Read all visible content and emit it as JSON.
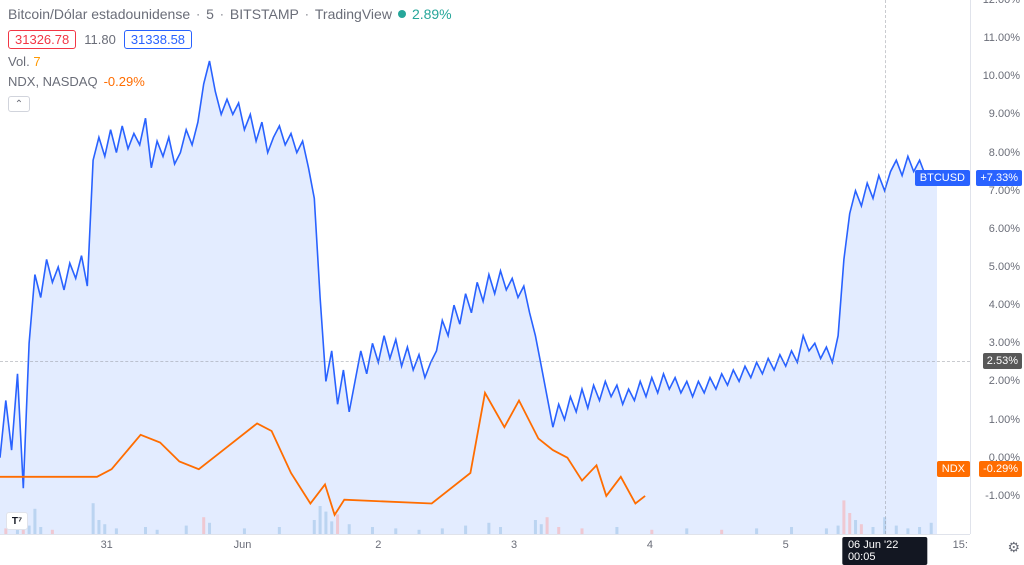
{
  "header": {
    "symbol": "Bitcoin/Dólar estadounidense",
    "interval": "5",
    "exchange": "BITSTAMP",
    "provider": "TradingView",
    "change_pct": "2.89%"
  },
  "ohlc": {
    "open": "31326.78",
    "mid": "11.80",
    "close": "31338.58"
  },
  "volume": {
    "label": "Vol.",
    "value": "7"
  },
  "compare": {
    "symbol": "NDX, NASDAQ",
    "change": "-0.29%"
  },
  "collapse_glyph": "⌃",
  "gear_glyph": "⚙",
  "logo": "T⁷",
  "y_axis": {
    "min": -2.0,
    "max": 12.0,
    "ticks": [
      {
        "v": 12.0,
        "label": "12.00%"
      },
      {
        "v": 11.0,
        "label": "11.00%"
      },
      {
        "v": 10.0,
        "label": "10.00%"
      },
      {
        "v": 9.0,
        "label": "9.00%"
      },
      {
        "v": 8.0,
        "label": "8.00%"
      },
      {
        "v": 7.0,
        "label": "7.00%"
      },
      {
        "v": 6.0,
        "label": "6.00%"
      },
      {
        "v": 5.0,
        "label": "5.00%"
      },
      {
        "v": 4.0,
        "label": "4.00%"
      },
      {
        "v": 3.0,
        "label": "3.00%"
      },
      {
        "v": 2.0,
        "label": "2.00%"
      },
      {
        "v": 1.0,
        "label": "1.00%"
      },
      {
        "v": 0.0,
        "label": "0.00%"
      },
      {
        "v": -1.0,
        "label": "-1.00%"
      }
    ],
    "crosshair": {
      "v": 2.53,
      "label": "2.53%",
      "bg": "#585858"
    },
    "current_btc": {
      "v": 7.33,
      "label": "+7.33%",
      "bg": "#2962ff",
      "tag": "BTCUSD"
    },
    "current_ndx": {
      "v": -0.29,
      "label": "-0.29%",
      "bg": "#ff6d00",
      "tag": "NDX"
    }
  },
  "x_axis": {
    "ticks": [
      {
        "px": 0.11,
        "label": "31"
      },
      {
        "px": 0.25,
        "label": "Jun"
      },
      {
        "px": 0.39,
        "label": "2"
      },
      {
        "px": 0.53,
        "label": "3"
      },
      {
        "px": 0.67,
        "label": "4"
      },
      {
        "px": 0.81,
        "label": "5"
      },
      {
        "px": 0.99,
        "label": "15:"
      }
    ],
    "crosshair": {
      "px": 0.912,
      "label": "06 Jun '22  00:05"
    }
  },
  "colors": {
    "btc_line": "#2962ff",
    "btc_fill": "#e3ecff",
    "ndx_line": "#ff6d00",
    "vol_bar": "#a0c4e8",
    "vol_bar_red": "#f6b0b4",
    "grid": "#e0e3eb",
    "bg": "#ffffff"
  },
  "btc_series": [
    [
      0.0,
      0.0
    ],
    [
      0.006,
      1.5
    ],
    [
      0.012,
      0.2
    ],
    [
      0.018,
      2.2
    ],
    [
      0.024,
      -0.8
    ],
    [
      0.03,
      3.0
    ],
    [
      0.036,
      4.8
    ],
    [
      0.042,
      4.2
    ],
    [
      0.048,
      5.2
    ],
    [
      0.054,
      4.6
    ],
    [
      0.06,
      5.0
    ],
    [
      0.066,
      4.4
    ],
    [
      0.072,
      5.1
    ],
    [
      0.078,
      4.7
    ],
    [
      0.084,
      5.3
    ],
    [
      0.09,
      4.5
    ],
    [
      0.096,
      7.8
    ],
    [
      0.102,
      8.4
    ],
    [
      0.108,
      7.9
    ],
    [
      0.114,
      8.6
    ],
    [
      0.12,
      8.0
    ],
    [
      0.126,
      8.7
    ],
    [
      0.132,
      8.1
    ],
    [
      0.138,
      8.5
    ],
    [
      0.144,
      8.2
    ],
    [
      0.15,
      8.9
    ],
    [
      0.156,
      7.6
    ],
    [
      0.162,
      8.3
    ],
    [
      0.168,
      7.9
    ],
    [
      0.174,
      8.4
    ],
    [
      0.18,
      7.7
    ],
    [
      0.186,
      8.0
    ],
    [
      0.192,
      8.6
    ],
    [
      0.198,
      8.2
    ],
    [
      0.204,
      8.8
    ],
    [
      0.21,
      9.8
    ],
    [
      0.216,
      10.4
    ],
    [
      0.222,
      9.6
    ],
    [
      0.228,
      9.0
    ],
    [
      0.234,
      9.4
    ],
    [
      0.24,
      9.0
    ],
    [
      0.246,
      9.3
    ],
    [
      0.252,
      8.6
    ],
    [
      0.258,
      9.0
    ],
    [
      0.264,
      8.3
    ],
    [
      0.27,
      8.8
    ],
    [
      0.276,
      8.0
    ],
    [
      0.282,
      8.4
    ],
    [
      0.288,
      8.7
    ],
    [
      0.294,
      8.2
    ],
    [
      0.3,
      8.5
    ],
    [
      0.306,
      8.0
    ],
    [
      0.312,
      8.3
    ],
    [
      0.318,
      7.6
    ],
    [
      0.324,
      6.8
    ],
    [
      0.33,
      4.2
    ],
    [
      0.336,
      2.0
    ],
    [
      0.342,
      2.8
    ],
    [
      0.348,
      1.4
    ],
    [
      0.354,
      2.3
    ],
    [
      0.36,
      1.2
    ],
    [
      0.366,
      2.0
    ],
    [
      0.372,
      2.8
    ],
    [
      0.378,
      2.2
    ],
    [
      0.384,
      3.0
    ],
    [
      0.39,
      2.5
    ],
    [
      0.396,
      3.2
    ],
    [
      0.402,
      2.6
    ],
    [
      0.408,
      3.1
    ],
    [
      0.414,
      2.4
    ],
    [
      0.42,
      2.9
    ],
    [
      0.426,
      2.3
    ],
    [
      0.432,
      2.7
    ],
    [
      0.438,
      2.1
    ],
    [
      0.444,
      2.5
    ],
    [
      0.45,
      2.8
    ],
    [
      0.456,
      3.6
    ],
    [
      0.462,
      3.2
    ],
    [
      0.468,
      4.0
    ],
    [
      0.474,
      3.5
    ],
    [
      0.48,
      4.3
    ],
    [
      0.486,
      3.8
    ],
    [
      0.492,
      4.6
    ],
    [
      0.498,
      4.1
    ],
    [
      0.504,
      4.8
    ],
    [
      0.51,
      4.3
    ],
    [
      0.516,
      4.9
    ],
    [
      0.522,
      4.4
    ],
    [
      0.528,
      4.7
    ],
    [
      0.534,
      4.2
    ],
    [
      0.54,
      4.5
    ],
    [
      0.546,
      3.8
    ],
    [
      0.552,
      3.2
    ],
    [
      0.558,
      2.4
    ],
    [
      0.564,
      1.6
    ],
    [
      0.57,
      0.8
    ],
    [
      0.576,
      1.4
    ],
    [
      0.582,
      1.0
    ],
    [
      0.588,
      1.6
    ],
    [
      0.594,
      1.2
    ],
    [
      0.6,
      1.8
    ],
    [
      0.606,
      1.3
    ],
    [
      0.612,
      1.9
    ],
    [
      0.618,
      1.5
    ],
    [
      0.624,
      2.0
    ],
    [
      0.63,
      1.6
    ],
    [
      0.636,
      1.9
    ],
    [
      0.642,
      1.4
    ],
    [
      0.648,
      1.8
    ],
    [
      0.654,
      1.5
    ],
    [
      0.66,
      2.0
    ],
    [
      0.666,
      1.6
    ],
    [
      0.672,
      2.1
    ],
    [
      0.678,
      1.7
    ],
    [
      0.684,
      2.2
    ],
    [
      0.69,
      1.8
    ],
    [
      0.696,
      2.1
    ],
    [
      0.702,
      1.7
    ],
    [
      0.708,
      2.0
    ],
    [
      0.714,
      1.6
    ],
    [
      0.72,
      2.0
    ],
    [
      0.726,
      1.7
    ],
    [
      0.732,
      2.1
    ],
    [
      0.738,
      1.8
    ],
    [
      0.744,
      2.2
    ],
    [
      0.75,
      1.9
    ],
    [
      0.756,
      2.3
    ],
    [
      0.762,
      2.0
    ],
    [
      0.768,
      2.4
    ],
    [
      0.774,
      2.1
    ],
    [
      0.78,
      2.5
    ],
    [
      0.786,
      2.2
    ],
    [
      0.792,
      2.6
    ],
    [
      0.798,
      2.3
    ],
    [
      0.804,
      2.7
    ],
    [
      0.81,
      2.4
    ],
    [
      0.816,
      2.8
    ],
    [
      0.822,
      2.5
    ],
    [
      0.828,
      3.2
    ],
    [
      0.834,
      2.8
    ],
    [
      0.84,
      3.0
    ],
    [
      0.846,
      2.6
    ],
    [
      0.852,
      2.9
    ],
    [
      0.858,
      2.5
    ],
    [
      0.864,
      3.2
    ],
    [
      0.87,
      5.2
    ],
    [
      0.876,
      6.4
    ],
    [
      0.882,
      7.0
    ],
    [
      0.888,
      6.6
    ],
    [
      0.894,
      7.2
    ],
    [
      0.9,
      6.8
    ],
    [
      0.906,
      7.4
    ],
    [
      0.912,
      7.0
    ],
    [
      0.918,
      7.5
    ],
    [
      0.924,
      7.8
    ],
    [
      0.93,
      7.4
    ],
    [
      0.936,
      7.9
    ],
    [
      0.942,
      7.5
    ],
    [
      0.948,
      7.8
    ],
    [
      0.954,
      7.4
    ],
    [
      0.96,
      7.2
    ],
    [
      0.966,
      7.33
    ]
  ],
  "ndx_series": [
    [
      0.0,
      -0.5
    ],
    [
      0.1,
      -0.5
    ],
    [
      0.115,
      -0.3
    ],
    [
      0.145,
      0.6
    ],
    [
      0.165,
      0.4
    ],
    [
      0.185,
      -0.1
    ],
    [
      0.205,
      -0.3
    ],
    [
      0.225,
      0.1
    ],
    [
      0.265,
      0.9
    ],
    [
      0.28,
      0.7
    ],
    [
      0.3,
      -0.4
    ],
    [
      0.32,
      -1.2
    ],
    [
      0.335,
      -0.7
    ],
    [
      0.345,
      -1.5
    ],
    [
      0.355,
      -1.1
    ],
    [
      0.445,
      -1.2
    ],
    [
      0.485,
      -0.4
    ],
    [
      0.5,
      1.7
    ],
    [
      0.52,
      0.8
    ],
    [
      0.535,
      1.5
    ],
    [
      0.555,
      0.5
    ],
    [
      0.57,
      0.2
    ],
    [
      0.585,
      0.0
    ],
    [
      0.6,
      -0.6
    ],
    [
      0.615,
      -0.2
    ],
    [
      0.625,
      -1.0
    ],
    [
      0.64,
      -0.5
    ],
    [
      0.655,
      -1.2
    ],
    [
      0.665,
      -1.0
    ]
  ],
  "volume_bars": [
    [
      0.006,
      0.4
    ],
    [
      0.018,
      0.8
    ],
    [
      0.024,
      1.4
    ],
    [
      0.03,
      0.6
    ],
    [
      0.036,
      1.8
    ],
    [
      0.042,
      0.5
    ],
    [
      0.054,
      0.3
    ],
    [
      0.096,
      2.2
    ],
    [
      0.102,
      1.0
    ],
    [
      0.108,
      0.7
    ],
    [
      0.12,
      0.4
    ],
    [
      0.15,
      0.5
    ],
    [
      0.162,
      0.3
    ],
    [
      0.192,
      0.6
    ],
    [
      0.21,
      1.2
    ],
    [
      0.216,
      0.8
    ],
    [
      0.252,
      0.4
    ],
    [
      0.288,
      0.5
    ],
    [
      0.324,
      1.0
    ],
    [
      0.33,
      2.0
    ],
    [
      0.336,
      1.6
    ],
    [
      0.342,
      0.9
    ],
    [
      0.348,
      1.4
    ],
    [
      0.36,
      0.7
    ],
    [
      0.384,
      0.5
    ],
    [
      0.408,
      0.4
    ],
    [
      0.432,
      0.3
    ],
    [
      0.456,
      0.4
    ],
    [
      0.48,
      0.6
    ],
    [
      0.504,
      0.8
    ],
    [
      0.516,
      0.5
    ],
    [
      0.552,
      1.0
    ],
    [
      0.558,
      0.7
    ],
    [
      0.564,
      1.2
    ],
    [
      0.576,
      0.5
    ],
    [
      0.6,
      0.4
    ],
    [
      0.636,
      0.5
    ],
    [
      0.672,
      0.3
    ],
    [
      0.708,
      0.4
    ],
    [
      0.744,
      0.3
    ],
    [
      0.78,
      0.4
    ],
    [
      0.816,
      0.5
    ],
    [
      0.852,
      0.4
    ],
    [
      0.864,
      0.6
    ],
    [
      0.87,
      2.4
    ],
    [
      0.876,
      1.5
    ],
    [
      0.882,
      1.0
    ],
    [
      0.888,
      0.7
    ],
    [
      0.9,
      0.5
    ],
    [
      0.912,
      1.2
    ],
    [
      0.924,
      0.6
    ],
    [
      0.936,
      0.4
    ],
    [
      0.948,
      0.5
    ],
    [
      0.96,
      0.8
    ]
  ]
}
